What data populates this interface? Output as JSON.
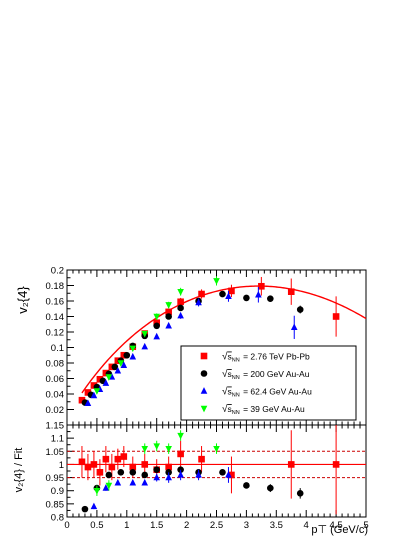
{
  "chart_data": [
    {
      "type": "scatter",
      "panel": "top",
      "ylabel": "v₂{4}",
      "xlabel": "",
      "xlim": [
        0,
        5
      ],
      "ylim": [
        0.0,
        0.2
      ],
      "x_ticks": [
        "0",
        "0.5",
        "1",
        "1.5",
        "2",
        "2.5",
        "3",
        "3.5",
        "4",
        "4.5",
        "5"
      ],
      "y_ticks": [
        "0.02",
        "0.04",
        "0.06",
        "0.08",
        "0.1",
        "0.12",
        "0.14",
        "0.16",
        "0.18",
        "0.2"
      ],
      "legend_position": "bottom-right",
      "series": [
        {
          "name": "= 2.76 TeV Pb-Pb",
          "marker": "square",
          "color": "#ff0000",
          "x": [
            0.25,
            0.35,
            0.45,
            0.55,
            0.65,
            0.75,
            0.85,
            0.95,
            1.1,
            1.3,
            1.5,
            1.7,
            1.9,
            2.25,
            2.75,
            3.25,
            3.75,
            4.5
          ],
          "y": [
            0.032,
            0.042,
            0.051,
            0.059,
            0.067,
            0.075,
            0.083,
            0.09,
            0.101,
            0.118,
            0.132,
            0.146,
            0.159,
            0.169,
            0.173,
            0.179,
            0.172,
            0.14
          ],
          "yerr": [
            0.003,
            0.003,
            0.003,
            0.003,
            0.003,
            0.003,
            0.003,
            0.003,
            0.003,
            0.003,
            0.004,
            0.004,
            0.005,
            0.006,
            0.008,
            0.012,
            0.017,
            0.026
          ]
        },
        {
          "name": "= 200 GeV Au-Au",
          "marker": "circle",
          "color": "#000000",
          "x": [
            0.3,
            0.4,
            0.5,
            0.6,
            0.7,
            0.8,
            0.9,
            1.0,
            1.1,
            1.3,
            1.5,
            1.7,
            1.9,
            2.2,
            2.6,
            3.0,
            3.4,
            3.9
          ],
          "y": [
            0.029,
            0.039,
            0.049,
            0.057,
            0.066,
            0.075,
            0.083,
            0.09,
            0.102,
            0.115,
            0.128,
            0.14,
            0.151,
            0.16,
            0.169,
            0.164,
            0.163,
            0.149
          ],
          "yerr": [
            0.001,
            0.001,
            0.001,
            0.001,
            0.001,
            0.001,
            0.001,
            0.001,
            0.001,
            0.001,
            0.001,
            0.002,
            0.002,
            0.002,
            0.003,
            0.003,
            0.004,
            0.005
          ]
        },
        {
          "name": "= 62.4 GeV Au-Au",
          "marker": "triangle-up",
          "color": "#0000ff",
          "x": [
            0.35,
            0.45,
            0.55,
            0.65,
            0.75,
            0.85,
            0.95,
            1.1,
            1.3,
            1.5,
            1.7,
            1.9,
            2.2,
            2.7,
            3.2,
            3.8
          ],
          "y": [
            0.028,
            0.038,
            0.046,
            0.054,
            0.062,
            0.07,
            0.077,
            0.088,
            0.101,
            0.114,
            0.128,
            0.141,
            0.158,
            0.166,
            0.168,
            0.126
          ],
          "yerr": [
            0.002,
            0.002,
            0.002,
            0.002,
            0.002,
            0.002,
            0.002,
            0.002,
            0.002,
            0.003,
            0.003,
            0.004,
            0.005,
            0.007,
            0.01,
            0.015
          ]
        },
        {
          "name": "= 39 GeV Au-Au",
          "marker": "triangle-down",
          "color": "#00ff00",
          "x": [
            0.5,
            0.7,
            0.9,
            1.1,
            1.3,
            1.5,
            1.7,
            1.9,
            2.5
          ],
          "y": [
            0.044,
            0.062,
            0.08,
            0.099,
            0.118,
            0.14,
            0.155,
            0.172,
            0.186
          ],
          "yerr": [
            0.003,
            0.003,
            0.003,
            0.003,
            0.003,
            0.004,
            0.004,
            0.005,
            0.006
          ]
        }
      ],
      "fit_curve": {
        "color": "#ff0000",
        "x_range": [
          0.25,
          5.0
        ]
      }
    },
    {
      "type": "scatter",
      "panel": "bottom",
      "ylabel": "v₂{4} / Fit",
      "xlabel": "p⊤ (GeV/c)",
      "xlim": [
        0,
        5
      ],
      "ylim": [
        0.8,
        1.15
      ],
      "x_ticks": [
        "0",
        "0.5",
        "1",
        "1.5",
        "2",
        "2.5",
        "3",
        "3.5",
        "4",
        "4.5",
        "5"
      ],
      "y_ticks": [
        "0.8",
        "0.85",
        "0.9",
        "0.95",
        "1",
        "1.05",
        "1.1",
        "1.15"
      ],
      "reference_lines": {
        "solid": 1.0,
        "dashed": [
          0.95,
          1.05
        ]
      },
      "series": [
        {
          "marker": "square",
          "color": "#ff0000",
          "x": [
            0.25,
            0.35,
            0.45,
            0.55,
            0.65,
            0.75,
            0.85,
            0.95,
            1.1,
            1.3,
            1.5,
            1.7,
            1.9,
            2.25,
            2.75,
            3.75,
            4.5
          ],
          "y": [
            1.01,
            0.99,
            1.0,
            0.97,
            1.02,
            0.99,
            1.02,
            1.03,
            0.99,
            1.0,
            0.98,
            0.99,
            1.04,
            1.02,
            0.96,
            1.0,
            1.0
          ],
          "yerr": [
            0.06,
            0.05,
            0.05,
            0.05,
            0.05,
            0.05,
            0.04,
            0.04,
            0.04,
            0.04,
            0.04,
            0.04,
            0.05,
            0.05,
            0.07,
            0.13,
            0.19
          ]
        },
        {
          "marker": "circle",
          "color": "#000000",
          "x": [
            0.3,
            0.5,
            0.7,
            0.9,
            1.1,
            1.3,
            1.5,
            1.7,
            1.9,
            2.2,
            2.6,
            3.0,
            3.4,
            3.9
          ],
          "y": [
            0.83,
            0.91,
            0.96,
            0.97,
            0.97,
            0.96,
            0.98,
            0.97,
            0.98,
            0.97,
            0.97,
            0.92,
            0.91,
            0.89
          ],
          "yerr": [
            0.005,
            0.005,
            0.005,
            0.005,
            0.005,
            0.005,
            0.005,
            0.005,
            0.006,
            0.008,
            0.01,
            0.01,
            0.015,
            0.02
          ]
        },
        {
          "marker": "triangle-up",
          "color": "#0000ff",
          "x": [
            0.45,
            0.65,
            0.85,
            1.1,
            1.3,
            1.5,
            1.7,
            1.9,
            2.2,
            2.7
          ],
          "y": [
            0.84,
            0.91,
            0.93,
            0.93,
            0.93,
            0.95,
            0.95,
            0.96,
            0.96,
            0.96
          ],
          "yerr": [
            0.01,
            0.01,
            0.01,
            0.01,
            0.01,
            0.015,
            0.02,
            0.02,
            0.02,
            0.03
          ]
        },
        {
          "marker": "triangle-down",
          "color": "#00ff00",
          "x": [
            0.5,
            0.7,
            1.3,
            1.5,
            1.7,
            1.9,
            2.5
          ],
          "y": [
            0.9,
            0.92,
            1.06,
            1.07,
            1.06,
            1.11,
            1.06
          ],
          "yerr": [
            0.02,
            0.02,
            0.02,
            0.02,
            0.02,
            0.02,
            0.02
          ]
        }
      ]
    }
  ],
  "legend": {
    "sqrt_symbol": "√",
    "s_label": "s",
    "nn_label": "NN",
    "entries": [
      "= 2.76 TeV Pb-Pb",
      "= 200 GeV Au-Au",
      "= 62.4 GeV Au-Au",
      "= 39 GeV Au-Au"
    ]
  },
  "axis_titles": {
    "top_y": "v₂{4}",
    "bottom_y": "v₂{4} / Fit",
    "x": "p⊤ (GeV/c)"
  }
}
